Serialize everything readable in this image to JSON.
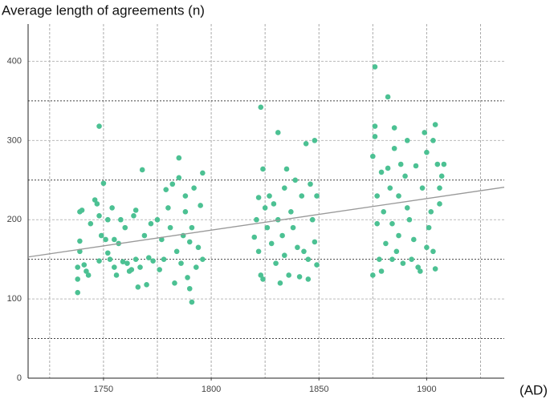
{
  "chart_data": {
    "type": "scatter",
    "y_axis_title": "Average length of agreements (n)",
    "x_axis_title": "(AD)",
    "xlim": [
      1715,
      1936
    ],
    "ylim": [
      0,
      447
    ],
    "xticks": [
      1750,
      1800,
      1850,
      1900
    ],
    "yticks": [
      0,
      100,
      200,
      300,
      400
    ],
    "xgrid": [
      1725,
      1750,
      1775,
      1800,
      1825,
      1850,
      1875,
      1900,
      1925
    ],
    "ygrid": [
      50,
      150,
      250,
      350
    ],
    "grid": true,
    "color": "#4cc193",
    "trendline": {
      "color": "#999999",
      "x": [
        1715,
        1936
      ],
      "y": [
        153,
        241
      ]
    },
    "x": [
      1738,
      1738,
      1738,
      1739,
      1739,
      1739,
      1740,
      1741,
      1742,
      1743,
      1744,
      1746,
      1747,
      1748,
      1748,
      1748,
      1749,
      1750,
      1751,
      1752,
      1752,
      1753,
      1754,
      1755,
      1755,
      1756,
      1757,
      1758,
      1759,
      1760,
      1761,
      1762,
      1763,
      1764,
      1765,
      1765,
      1766,
      1767,
      1768,
      1769,
      1770,
      1771,
      1772,
      1773,
      1775,
      1776,
      1777,
      1778,
      1779,
      1780,
      1781,
      1782,
      1783,
      1784,
      1785,
      1785,
      1786,
      1787,
      1788,
      1788,
      1789,
      1790,
      1790,
      1791,
      1791,
      1792,
      1793,
      1794,
      1795,
      1796,
      1796,
      1820,
      1821,
      1822,
      1822,
      1823,
      1823,
      1824,
      1824,
      1825,
      1826,
      1827,
      1828,
      1829,
      1830,
      1831,
      1831,
      1832,
      1833,
      1834,
      1834,
      1835,
      1836,
      1837,
      1838,
      1839,
      1840,
      1841,
      1842,
      1843,
      1844,
      1845,
      1845,
      1846,
      1847,
      1848,
      1848,
      1849,
      1849,
      1875,
      1875,
      1876,
      1876,
      1876,
      1877,
      1877,
      1878,
      1879,
      1879,
      1880,
      1881,
      1882,
      1882,
      1883,
      1884,
      1884,
      1885,
      1885,
      1886,
      1887,
      1887,
      1888,
      1889,
      1890,
      1891,
      1891,
      1892,
      1893,
      1894,
      1895,
      1896,
      1897,
      1898,
      1899,
      1900,
      1900,
      1901,
      1902,
      1903,
      1903,
      1904,
      1904,
      1905,
      1906,
      1906,
      1907,
      1908
    ],
    "values": [
      108,
      125,
      140,
      160,
      173,
      210,
      212,
      143,
      135,
      130,
      195,
      225,
      220,
      205,
      148,
      318,
      180,
      246,
      175,
      200,
      158,
      150,
      215,
      175,
      140,
      130,
      170,
      200,
      147,
      190,
      145,
      135,
      137,
      205,
      212,
      150,
      115,
      140,
      263,
      180,
      118,
      152,
      195,
      148,
      200,
      137,
      175,
      150,
      238,
      215,
      190,
      245,
      120,
      160,
      278,
      253,
      145,
      180,
      230,
      210,
      127,
      113,
      172,
      96,
      190,
      240,
      140,
      165,
      218,
      259,
      150,
      178,
      200,
      228,
      160,
      342,
      130,
      264,
      125,
      215,
      190,
      230,
      170,
      220,
      145,
      310,
      200,
      120,
      180,
      240,
      155,
      264,
      130,
      210,
      190,
      250,
      165,
      128,
      230,
      160,
      296,
      150,
      125,
      245,
      200,
      300,
      172,
      230,
      143,
      130,
      280,
      318,
      305,
      393,
      230,
      195,
      150,
      260,
      135,
      210,
      170,
      355,
      265,
      240,
      150,
      195,
      290,
      316,
      160,
      230,
      180,
      270,
      145,
      255,
      300,
      215,
      200,
      150,
      175,
      268,
      140,
      135,
      240,
      310,
      165,
      285,
      190,
      210,
      300,
      160,
      138,
      320,
      270,
      240,
      220,
      255,
      270
    ]
  }
}
